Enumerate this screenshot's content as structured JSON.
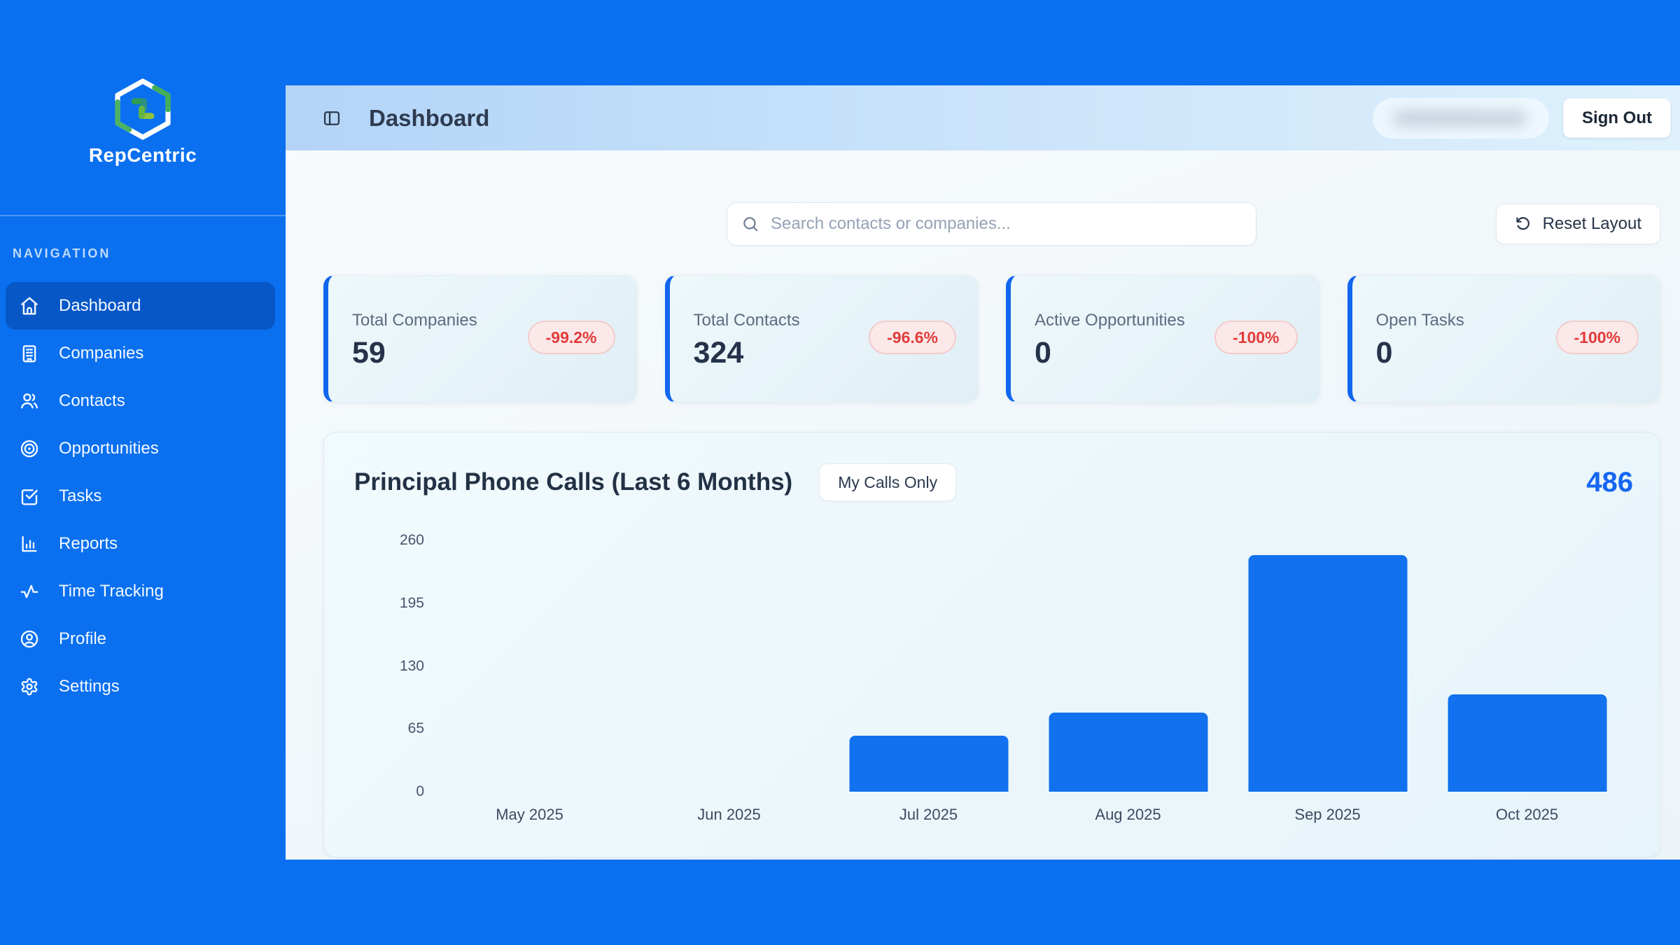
{
  "brand": {
    "name": "RepCentric"
  },
  "sidebar": {
    "section_label": "NAVIGATION",
    "items": [
      {
        "label": "Dashboard",
        "icon": "home-icon",
        "active": true
      },
      {
        "label": "Companies",
        "icon": "building-icon",
        "active": false
      },
      {
        "label": "Contacts",
        "icon": "users-icon",
        "active": false
      },
      {
        "label": "Opportunities",
        "icon": "target-icon",
        "active": false
      },
      {
        "label": "Tasks",
        "icon": "check-square-icon",
        "active": false
      },
      {
        "label": "Reports",
        "icon": "bar-chart-icon",
        "active": false
      },
      {
        "label": "Time Tracking",
        "icon": "activity-icon",
        "active": false
      },
      {
        "label": "Profile",
        "icon": "user-circle-icon",
        "active": false
      },
      {
        "label": "Settings",
        "icon": "gear-icon",
        "active": false
      }
    ]
  },
  "header": {
    "title": "Dashboard",
    "sign_out_label": "Sign Out"
  },
  "toolbar": {
    "search_placeholder": "Search contacts or companies...",
    "reset_label": "Reset Layout"
  },
  "stats": [
    {
      "label": "Total Companies",
      "value": "59",
      "change": "-99.2%"
    },
    {
      "label": "Total Contacts",
      "value": "324",
      "change": "-96.6%"
    },
    {
      "label": "Active Opportunities",
      "value": "0",
      "change": "-100%"
    },
    {
      "label": "Open Tasks",
      "value": "0",
      "change": "-100%"
    }
  ],
  "chart_card": {
    "title": "Principal Phone Calls (Last 6 Months)",
    "filter_label": "My Calls Only",
    "total": "486"
  },
  "chart_data": {
    "type": "bar",
    "title": "Principal Phone Calls (Last 6 Months)",
    "categories": [
      "May 2025",
      "Jun 2025",
      "Jul 2025",
      "Aug 2025",
      "Sep 2025",
      "Oct 2025"
    ],
    "values": [
      0,
      0,
      58,
      82,
      245,
      101
    ],
    "total": 486,
    "yticks": [
      0,
      65,
      130,
      195,
      260
    ],
    "ylim": [
      0,
      260
    ],
    "xlabel": "",
    "ylabel": "",
    "grid": false,
    "legend": false,
    "bar_color": "#1171ee"
  },
  "colors": {
    "page_blue": "#0a70f0",
    "active_nav": "#0757c7",
    "accent_blue": "#1266ee",
    "bar_blue": "#1171ee",
    "total_blue": "#1566f2",
    "badge_red": "#e23b3b",
    "badge_bg": "#fbe9e9",
    "header_band_start": "#b3d4f7",
    "header_band_end": "#def1fc",
    "card_bg": "#e8f5fa",
    "text_dark": "#25324a",
    "text_muted": "#5d6b80"
  }
}
